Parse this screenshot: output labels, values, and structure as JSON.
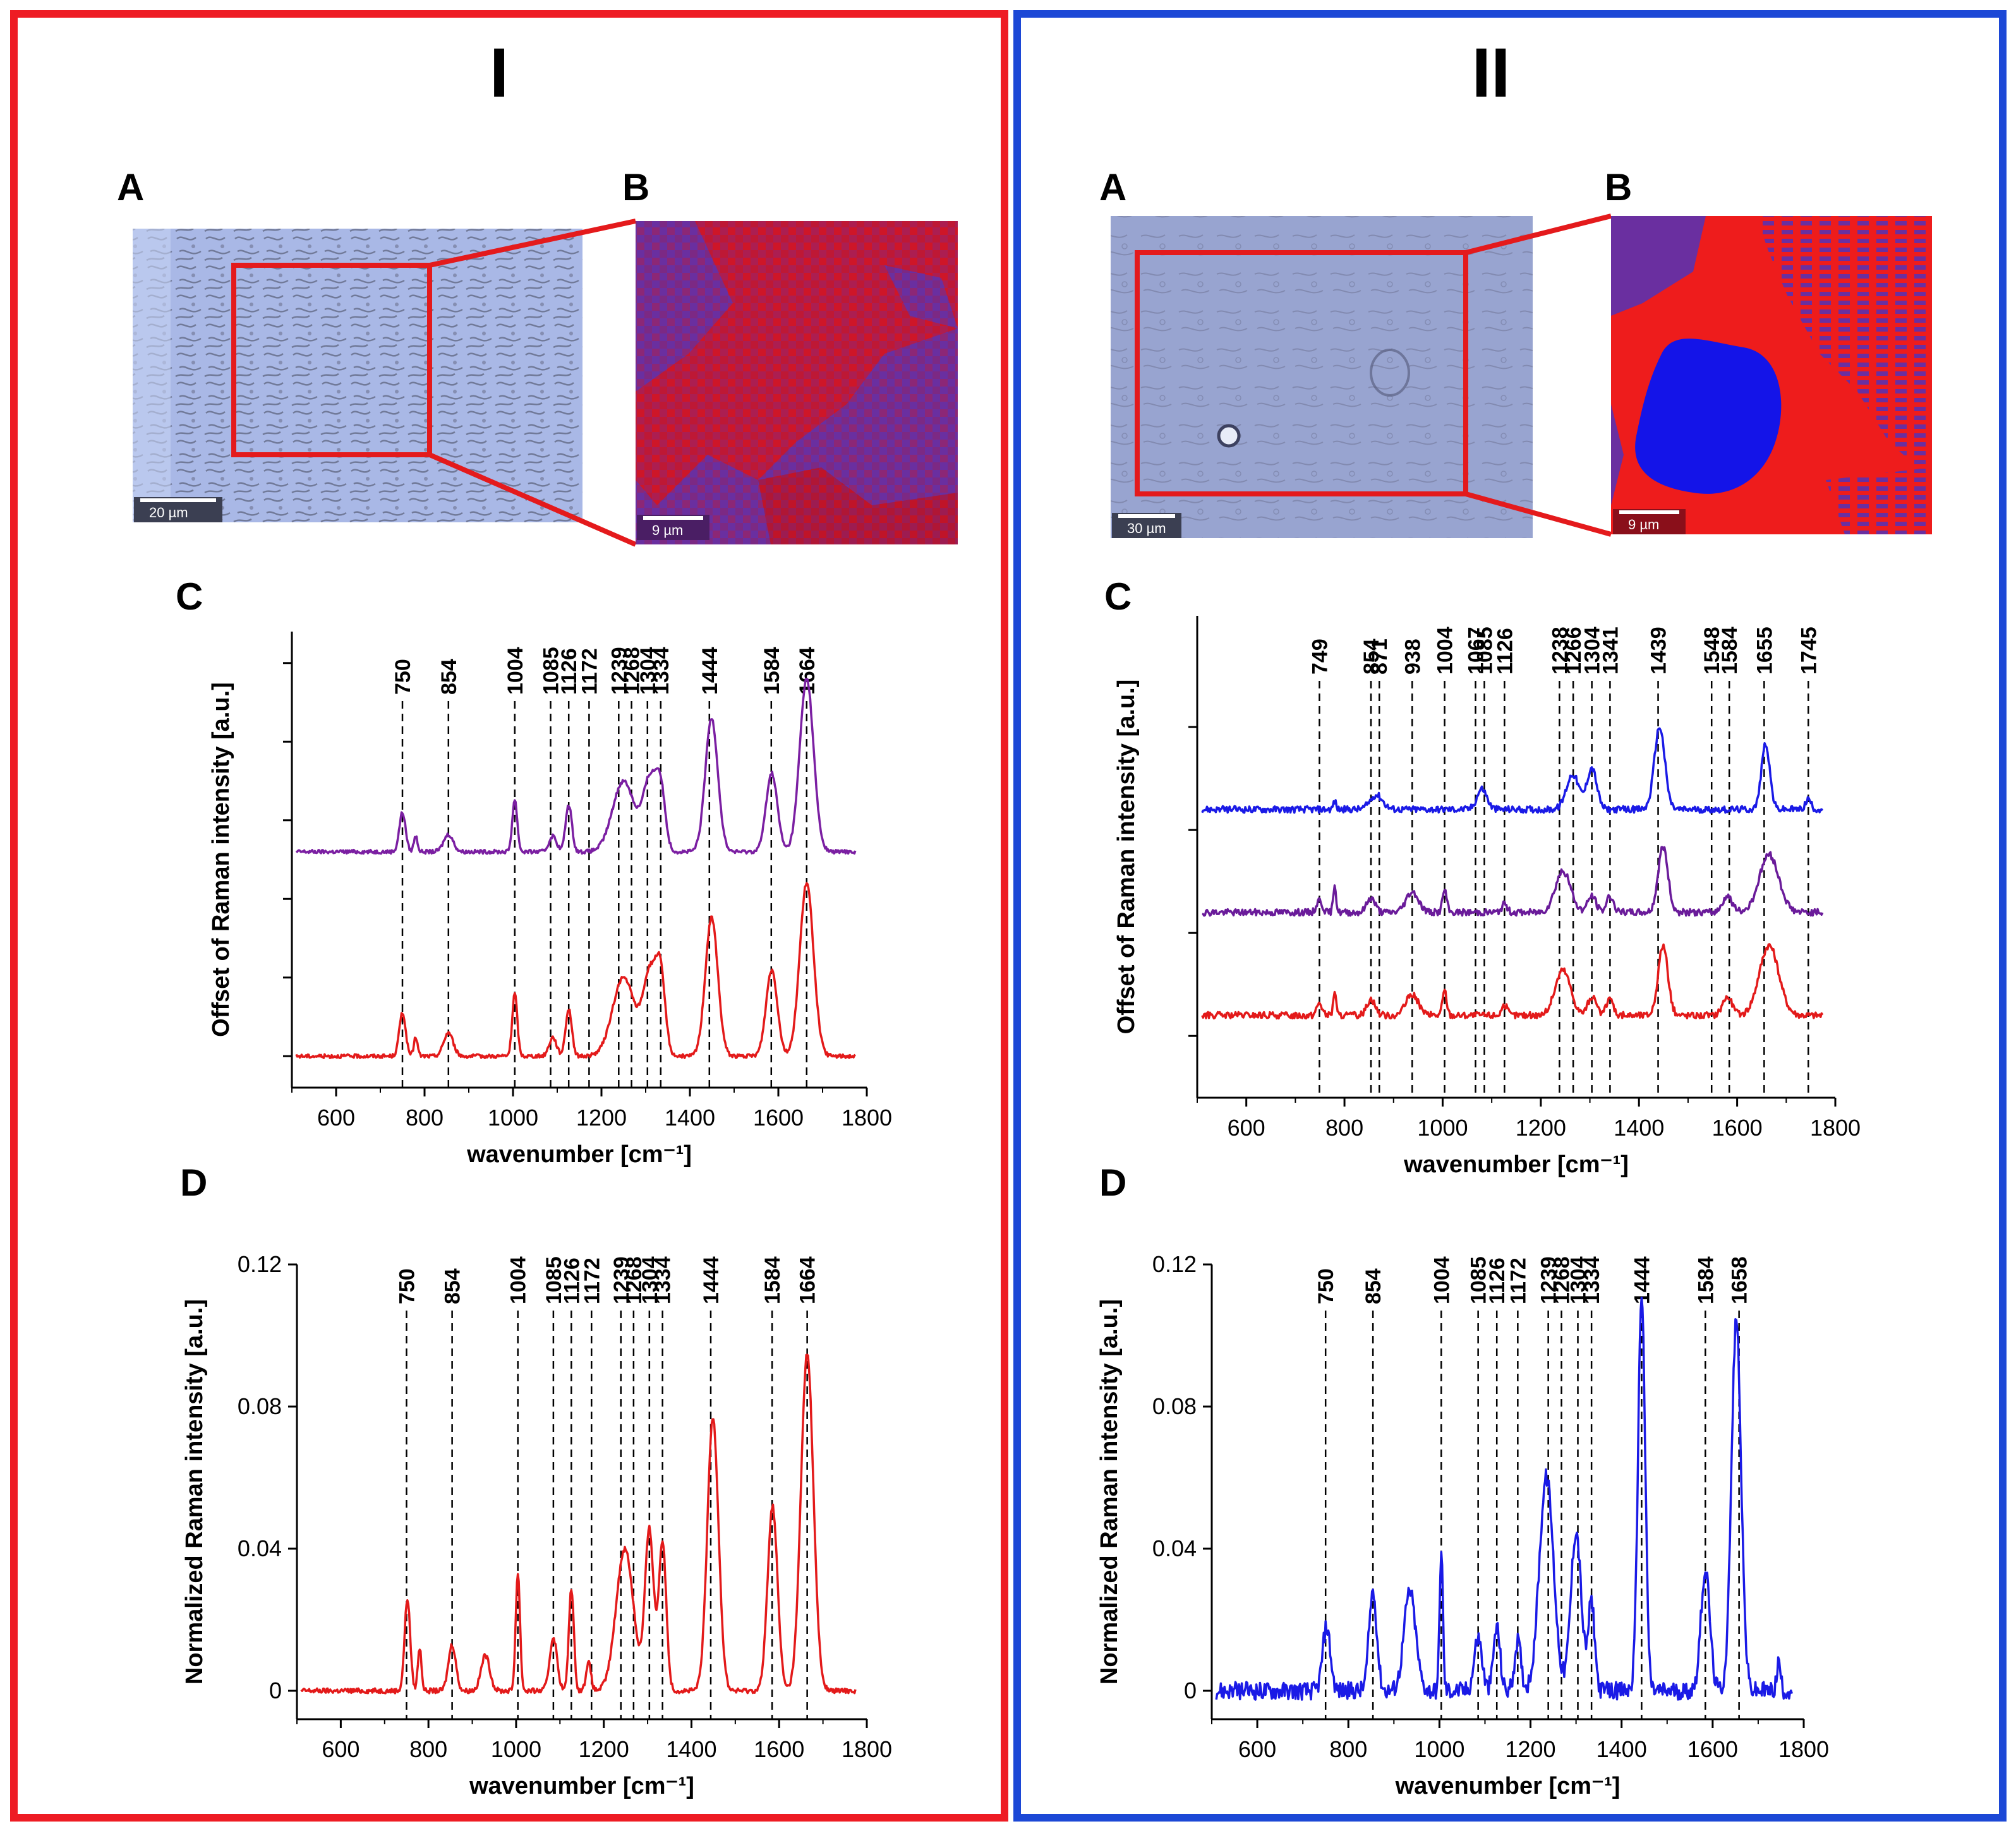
{
  "panels": {
    "I": {
      "title": "I",
      "border_color": "#ee1c24",
      "A_label": "A",
      "B_label": "B",
      "C_label": "C",
      "D_label": "D",
      "scalebar_A": "20 µm",
      "scalebar_B": "9 µm"
    },
    "II": {
      "title": "II",
      "border_color": "#1c48d6",
      "A_label": "A",
      "B_label": "B",
      "C_label": "C",
      "D_label": "D",
      "scalebar_A": "30 µm",
      "scalebar_B": "9 µm"
    }
  },
  "map_colors": {
    "purple": "#6a2fa0",
    "red": "#ee1c1c",
    "blue": "#1414e8",
    "dark_red": "#a00a2a"
  },
  "chart_data": [
    {
      "id": "I-C",
      "type": "line",
      "xlabel": "wavenumber [cm⁻¹]",
      "ylabel": "Offset of Raman intensity [a.u.]",
      "xlim": [
        500,
        1800
      ],
      "xticks": [
        600,
        800,
        1000,
        1200,
        1400,
        1600,
        1800
      ],
      "ylim": [
        -2,
        27
      ],
      "yticks": [
        0,
        5,
        10,
        15,
        20,
        25
      ],
      "yticks_labeled": false,
      "peak_labels": [
        "750",
        "854",
        "1004",
        "1085",
        "1126",
        "1172",
        "1239",
        "1268",
        "1304",
        "1334",
        "1444",
        "1584",
        "1664"
      ],
      "peak_positions": [
        750,
        854,
        1004,
        1085,
        1126,
        1172,
        1239,
        1268,
        1304,
        1334,
        1444,
        1584,
        1664
      ],
      "series": [
        {
          "name": "purple",
          "color": "#7b1fa2",
          "baseline": 13,
          "peaks": [
            [
              750,
              2.5,
              10
            ],
            [
              780,
              1.0,
              6
            ],
            [
              854,
              1.1,
              15
            ],
            [
              1004,
              3.3,
              8
            ],
            [
              1090,
              1.0,
              12
            ],
            [
              1126,
              3.0,
              10
            ],
            [
              1250,
              4.5,
              35
            ],
            [
              1310,
              4.5,
              22
            ],
            [
              1334,
              3.5,
              15
            ],
            [
              1449,
              8.5,
              20
            ],
            [
              1585,
              5.0,
              18
            ],
            [
              1664,
              11.0,
              22
            ]
          ]
        },
        {
          "name": "red",
          "color": "#e31a1a",
          "baseline": 0,
          "peaks": [
            [
              750,
              2.8,
              10
            ],
            [
              780,
              1.2,
              6
            ],
            [
              854,
              1.5,
              15
            ],
            [
              1004,
              4.0,
              8
            ],
            [
              1090,
              1.2,
              12
            ],
            [
              1126,
              3.0,
              10
            ],
            [
              1250,
              5.0,
              35
            ],
            [
              1310,
              5.2,
              22
            ],
            [
              1334,
              4.5,
              15
            ],
            [
              1449,
              8.8,
              20
            ],
            [
              1585,
              5.5,
              18
            ],
            [
              1664,
              11.0,
              22
            ]
          ]
        }
      ]
    },
    {
      "id": "I-D",
      "type": "line",
      "xlabel": "wavenumber [cm⁻¹]",
      "ylabel": "Normalized Raman intensity [a.u.]",
      "xlim": [
        500,
        1800
      ],
      "xticks": [
        600,
        800,
        1000,
        1200,
        1400,
        1600,
        1800
      ],
      "ylim": [
        -0.008,
        0.12
      ],
      "yticks": [
        0,
        0.04,
        0.08,
        0.12
      ],
      "ytick_labels": [
        "0",
        "0.04",
        "0.08",
        "0.12"
      ],
      "peak_labels": [
        "750",
        "854",
        "1004",
        "1085",
        "1126",
        "1172",
        "1239",
        "1268",
        "1304",
        "1334",
        "1444",
        "1584",
        "1664"
      ],
      "peak_positions": [
        750,
        854,
        1004,
        1085,
        1126,
        1172,
        1239,
        1268,
        1304,
        1334,
        1444,
        1584,
        1664
      ],
      "series": [
        {
          "name": "red",
          "color": "#e31a1a",
          "baseline": 0,
          "peaks": [
            [
              752,
              0.026,
              9
            ],
            [
              780,
              0.012,
              6
            ],
            [
              854,
              0.013,
              12
            ],
            [
              930,
              0.01,
              14
            ],
            [
              1004,
              0.033,
              7
            ],
            [
              1085,
              0.015,
              12
            ],
            [
              1126,
              0.029,
              8
            ],
            [
              1165,
              0.008,
              8
            ],
            [
              1248,
              0.04,
              28
            ],
            [
              1304,
              0.045,
              14
            ],
            [
              1334,
              0.042,
              12
            ],
            [
              1449,
              0.077,
              18
            ],
            [
              1585,
              0.052,
              16
            ],
            [
              1664,
              0.095,
              20
            ]
          ]
        }
      ]
    },
    {
      "id": "II-C",
      "type": "line",
      "xlabel": "wavenumber [cm⁻¹]",
      "ylabel": "Offset of Raman intensity [a.u.]",
      "xlim": [
        500,
        1800
      ],
      "xticks": [
        600,
        800,
        1000,
        1200,
        1400,
        1600,
        1800
      ],
      "ylim": [
        -1.5,
        10.2
      ],
      "yticks": [
        0,
        2.5,
        5,
        7.5
      ],
      "yticks_labeled": false,
      "peak_labels": [
        "749",
        "854",
        "871",
        "938",
        "1004",
        "1067",
        "1085",
        "1126",
        "1238",
        "1266",
        "1304",
        "1341",
        "1439",
        "1548",
        "1584",
        "1655",
        "1745"
      ],
      "peak_positions": [
        749,
        854,
        871,
        938,
        1004,
        1067,
        1085,
        1126,
        1238,
        1266,
        1304,
        1341,
        1439,
        1548,
        1584,
        1655,
        1745
      ],
      "series": [
        {
          "name": "blue",
          "color": "#1a1ae6",
          "baseline": 5.5,
          "peaks": [
            [
              780,
              0.2,
              4
            ],
            [
              865,
              0.35,
              18
            ],
            [
              1080,
              0.5,
              14
            ],
            [
              1265,
              0.85,
              18
            ],
            [
              1304,
              1.0,
              14
            ],
            [
              1442,
              2.0,
              15
            ],
            [
              1658,
              1.6,
              12
            ],
            [
              1745,
              0.25,
              8
            ]
          ]
        },
        {
          "name": "purple",
          "color": "#6a1b9a",
          "baseline": 3.0,
          "peaks": [
            [
              749,
              0.3,
              8
            ],
            [
              780,
              0.7,
              4
            ],
            [
              854,
              0.35,
              12
            ],
            [
              938,
              0.5,
              18
            ],
            [
              1004,
              0.55,
              6
            ],
            [
              1126,
              0.2,
              8
            ],
            [
              1245,
              1.0,
              22
            ],
            [
              1304,
              0.4,
              12
            ],
            [
              1341,
              0.4,
              10
            ],
            [
              1449,
              1.6,
              14
            ],
            [
              1580,
              0.4,
              14
            ],
            [
              1665,
              1.4,
              28
            ]
          ]
        },
        {
          "name": "red",
          "color": "#e31a1a",
          "baseline": 0.5,
          "peaks": [
            [
              749,
              0.3,
              8
            ],
            [
              780,
              0.6,
              4
            ],
            [
              854,
              0.4,
              12
            ],
            [
              938,
              0.5,
              18
            ],
            [
              1004,
              0.6,
              6
            ],
            [
              1126,
              0.25,
              8
            ],
            [
              1245,
              1.1,
              22
            ],
            [
              1304,
              0.45,
              12
            ],
            [
              1341,
              0.4,
              10
            ],
            [
              1449,
              1.7,
              14
            ],
            [
              1580,
              0.45,
              14
            ],
            [
              1665,
              1.7,
              28
            ]
          ]
        }
      ]
    },
    {
      "id": "II-D",
      "type": "line",
      "xlabel": "wavenumber [cm⁻¹]",
      "ylabel": "Normalized Raman intensity [a.u.]",
      "xlim": [
        500,
        1800
      ],
      "xticks": [
        600,
        800,
        1000,
        1200,
        1400,
        1600,
        1800
      ],
      "ylim": [
        -0.008,
        0.12
      ],
      "yticks": [
        0,
        0.04,
        0.08,
        0.12
      ],
      "ytick_labels": [
        "0",
        "0.04",
        "0.08",
        "0.12"
      ],
      "peak_labels": [
        "750",
        "854",
        "1004",
        "1085",
        "1126",
        "1172",
        "1239",
        "1268",
        "1304",
        "1334",
        "1444",
        "1584",
        "1658"
      ],
      "peak_positions": [
        750,
        854,
        1004,
        1085,
        1126,
        1172,
        1239,
        1268,
        1304,
        1334,
        1444,
        1584,
        1658
      ],
      "series": [
        {
          "name": "blue",
          "color": "#1a1ae6",
          "baseline": 0,
          "peaks": [
            [
              752,
              0.018,
              12
            ],
            [
              854,
              0.028,
              12
            ],
            [
              935,
              0.028,
              18
            ],
            [
              1004,
              0.04,
              5
            ],
            [
              1085,
              0.015,
              12
            ],
            [
              1126,
              0.018,
              10
            ],
            [
              1172,
              0.014,
              10
            ],
            [
              1235,
              0.06,
              22
            ],
            [
              1300,
              0.045,
              16
            ],
            [
              1334,
              0.025,
              10
            ],
            [
              1444,
              0.112,
              11
            ],
            [
              1584,
              0.034,
              14
            ],
            [
              1652,
              0.104,
              15
            ],
            [
              1745,
              0.008,
              6
            ]
          ]
        }
      ]
    }
  ]
}
